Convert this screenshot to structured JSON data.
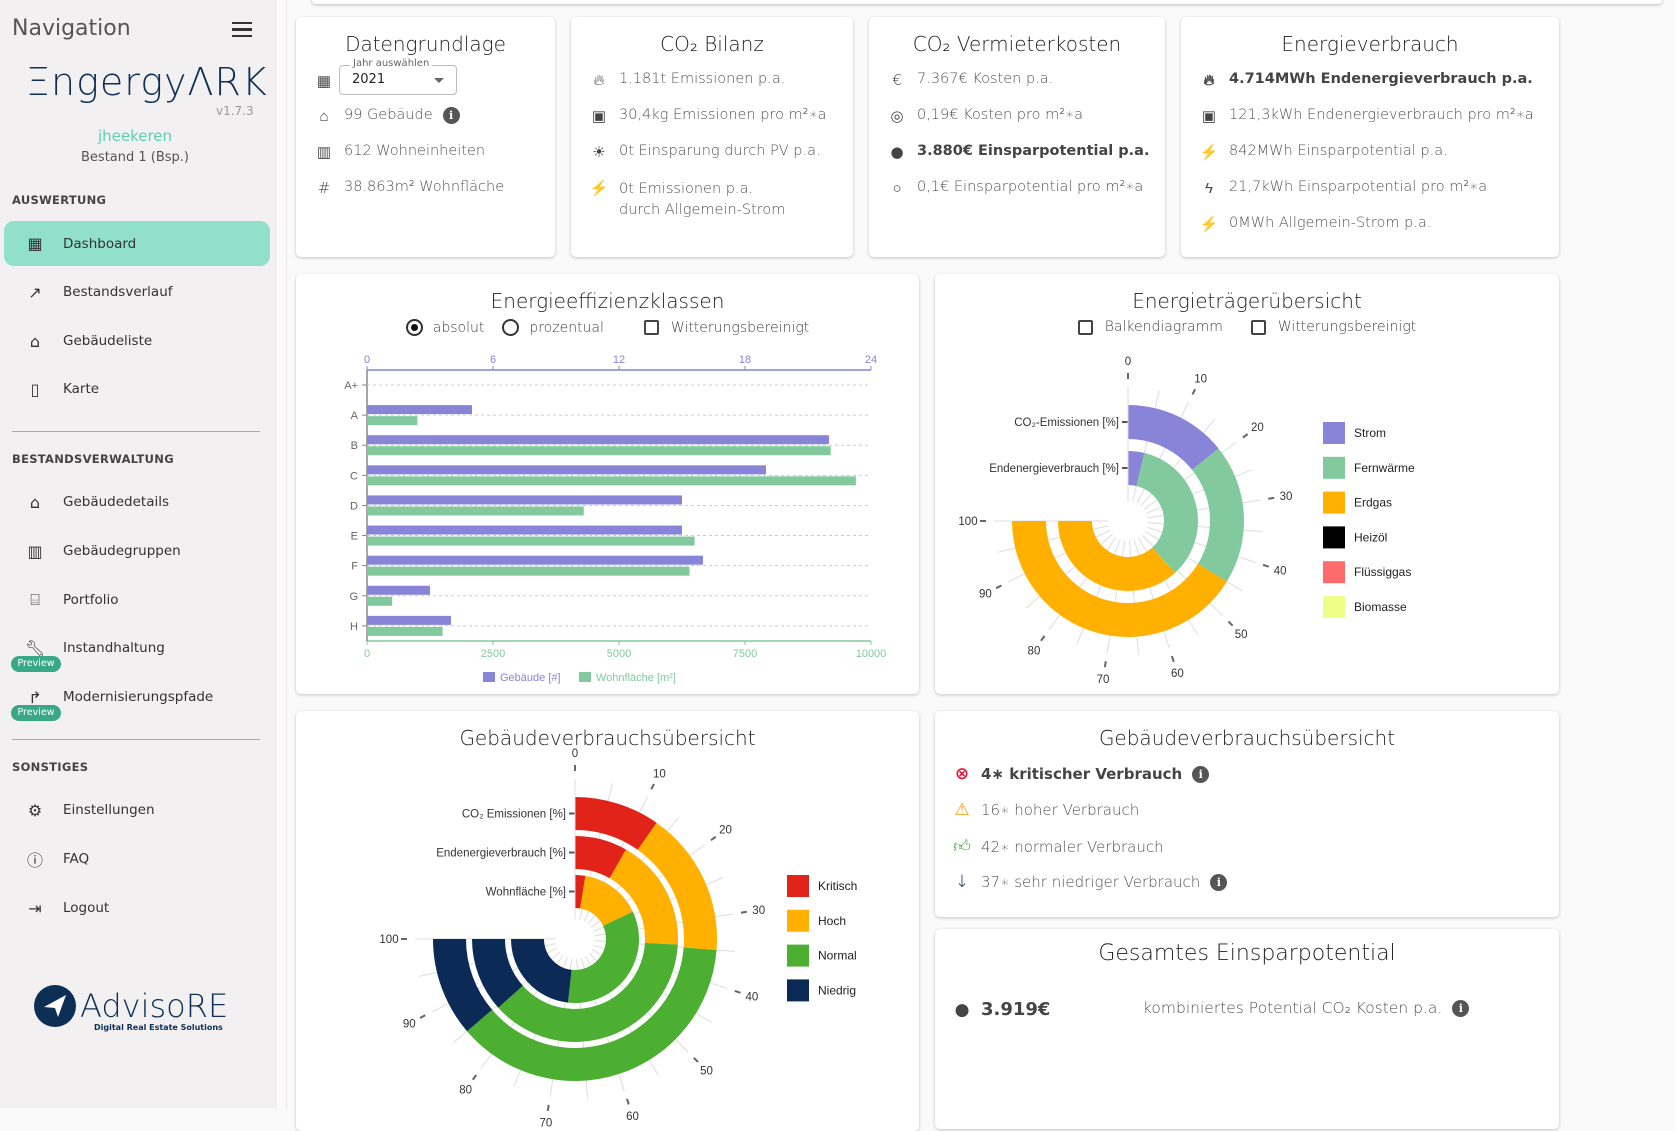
{
  "sidebar": {
    "title": "Navigation",
    "logo": "ΞngergyΛRK",
    "version": "v1.7.3",
    "username": "jheekeren",
    "bestand": "Bestand 1 (Bsp.)",
    "sections": {
      "auswertung": "AUSWERTUNG",
      "bestandsverwaltung": "BESTANDSVERWALTUNG",
      "sonstiges": "SONSTIGES"
    },
    "items": [
      {
        "label": "Dashboard",
        "icon": "dashboard-icon",
        "active": true
      },
      {
        "label": "Bestandsverlauf",
        "icon": "chart-search-icon"
      },
      {
        "label": "Gebäudeliste",
        "icon": "building-list-icon"
      },
      {
        "label": "Karte",
        "icon": "map-icon"
      },
      {
        "label": "Gebäudedetails",
        "icon": "house-icon"
      },
      {
        "label": "Gebäudegruppen",
        "icon": "buildings-icon"
      },
      {
        "label": "Portfolio",
        "icon": "bank-icon"
      },
      {
        "label": "Instandhaltung",
        "icon": "wrench-icon",
        "badge": "Preview"
      },
      {
        "label": "Modernisierungspfade",
        "icon": "path-icon",
        "badge": "Preview"
      },
      {
        "label": "Einstellungen",
        "icon": "gear-icon"
      },
      {
        "label": "FAQ",
        "icon": "help-icon"
      },
      {
        "label": "Logout",
        "icon": "logout-icon"
      }
    ],
    "footer_logo": "AdvisoRE",
    "footer_tagline": "Digital Real Estate Solutions"
  },
  "cards": {
    "datengrundlage": {
      "title": "Datengrundlage",
      "year_label": "Jahr auswählen",
      "year_value": "2021",
      "stats": [
        "99 Gebäude",
        "612 Wohneinheiten",
        "38.863m² Wohnfläche"
      ]
    },
    "co2_bilanz": {
      "title": "CO₂ Bilanz",
      "stats": [
        "1.181t Emissionen p.a.",
        "30,4kg Emissionen pro m²∗a",
        "0t Einsparung durch PV p.a.",
        "0t Emissionen p.a. durch Allgemein-Strom"
      ]
    },
    "co2_vermieterkosten": {
      "title": "CO₂ Vermieterkosten",
      "stats": [
        "7.367€ Kosten p.a.",
        "0,19€ Kosten pro m²∗a",
        "3.880€ Einsparpotential p.a.",
        "0,1€ Einsparpotential pro m²∗a"
      ]
    },
    "energieverbrauch": {
      "title": "Energieverbrauch",
      "stats": [
        "4.714MWh Endenergieverbrauch p.a.",
        "121,3kWh Endenergieverbrauch pro m²∗a",
        "842MWh Einsparpotential p.a.",
        "21,7kWh Einsparpotential pro m²∗a",
        "0MWh Allgemein-Strom p.a."
      ]
    },
    "effizienz": {
      "title": "Energieeffizienzklassen",
      "radio_absolut": "absolut",
      "radio_prozentual": "prozentual",
      "checkbox_witterung": "Witterungsbereinigt"
    },
    "traeger": {
      "title": "Energieträgerübersicht",
      "checkbox_balken": "Balkendiagramm",
      "checkbox_witterung": "Witterungsbereinigt"
    },
    "gebaeude_chart": {
      "title": "Gebäudeverbrauchsübersicht"
    },
    "gebaeude_list": {
      "title": "Gebäudeverbrauchsübersicht",
      "items": [
        {
          "text": "4∗ kritischer Verbrauch",
          "icon": "critical-icon",
          "color": "#e0193c",
          "bold": true,
          "info": true
        },
        {
          "text": "16∗ hoher Verbrauch",
          "icon": "warning-icon",
          "color": "#f39c12",
          "bold": false,
          "info": false
        },
        {
          "text": "42∗ normaler Verbrauch",
          "icon": "thumb-up-icon",
          "color": "#3fa83a",
          "bold": false,
          "info": false
        },
        {
          "text": "37∗ sehr niedriger Verbrauch",
          "icon": "arrow-down-icon",
          "color": "#0e2f55",
          "bold": false,
          "info": true
        }
      ]
    },
    "einsparpotential": {
      "title": "Gesamtes Einsparpotential",
      "value": "3.919€",
      "label": "kombiniertes Potential CO₂ Kosten p.a."
    }
  },
  "chart_data": [
    {
      "type": "bar",
      "orientation": "horizontal",
      "title": "Energieeffizienzklassen",
      "categories": [
        "A+",
        "A",
        "B",
        "C",
        "D",
        "E",
        "F",
        "G",
        "H"
      ],
      "series": [
        {
          "name": "Gebäude [#]",
          "color": "#8884d8",
          "axis": "top",
          "values": [
            0,
            5,
            22,
            19,
            15,
            15,
            16,
            3,
            4
          ]
        },
        {
          "name": "Wohnfläche [m²]",
          "color": "#82ca9d",
          "axis": "bottom",
          "values": [
            0,
            1000,
            9200,
            9700,
            4300,
            6500,
            6400,
            500,
            1500
          ]
        }
      ],
      "top_axis": {
        "range": [
          0,
          24
        ],
        "ticks": [
          0,
          6,
          12,
          18,
          24
        ]
      },
      "bottom_axis": {
        "range": [
          0,
          10000
        ],
        "ticks": [
          0,
          2500,
          5000,
          7500,
          10000
        ]
      },
      "legend": "bottom",
      "grid": true
    },
    {
      "type": "radial-bar",
      "title": "Energieträgerübersicht",
      "rings": [
        "CO₂-Emissionen [%]",
        "Endenergieverbrauch [%]"
      ],
      "angular_axis": {
        "range": [
          0,
          100
        ],
        "ticks": [
          0,
          10,
          20,
          30,
          40,
          50,
          60,
          70,
          80,
          90,
          100
        ]
      },
      "series": [
        {
          "name": "Strom",
          "color": "#8884d8",
          "values": [
            19,
            5
          ]
        },
        {
          "name": "Fernwärme",
          "color": "#82ca9d",
          "values": [
            26,
            46
          ]
        },
        {
          "name": "Erdgas",
          "color": "#ffb000",
          "values": [
            55,
            49
          ]
        },
        {
          "name": "Heizöl",
          "color": "#000000",
          "values": [
            0,
            0
          ]
        },
        {
          "name": "Flüssiggas",
          "color": "#ff6b6b",
          "values": [
            0,
            0
          ]
        },
        {
          "name": "Biomasse",
          "color": "#eeff88",
          "values": [
            0,
            0
          ]
        }
      ],
      "legend": "right"
    },
    {
      "type": "radial-bar",
      "title": "Gebäudeverbrauchsübersicht",
      "rings": [
        "CO₂ Emissionen [%]",
        "Endenergieverbrauch [%]",
        "Wohnfläche [%]"
      ],
      "angular_axis": {
        "range": [
          0,
          100
        ],
        "ticks": [
          0,
          10,
          20,
          30,
          40,
          50,
          60,
          70,
          80,
          90,
          100
        ]
      },
      "series": [
        {
          "name": "Kritisch",
          "color": "#e2231a",
          "values": [
            13,
            11,
            3.5
          ]
        },
        {
          "name": "Hoch",
          "color": "#ffb000",
          "values": [
            22,
            23.5,
            20.5
          ]
        },
        {
          "name": "Normal",
          "color": "#4caf32",
          "values": [
            50,
            50,
            45
          ]
        },
        {
          "name": "Niedrig",
          "color": "#0b2a55",
          "values": [
            15,
            15.5,
            31
          ]
        }
      ],
      "legend": "right"
    }
  ]
}
